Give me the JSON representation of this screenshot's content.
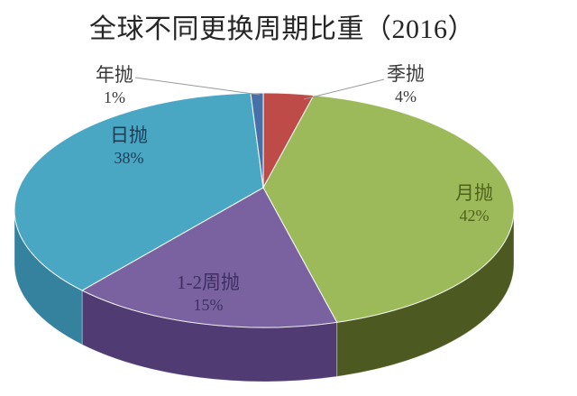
{
  "title": "全球不同更换周期比重（2016）",
  "background_color": "#ffffff",
  "chart_data": {
    "type": "pie",
    "style": "3d",
    "title": "全球不同更换周期比重（2016）",
    "unit": "percent",
    "start_angle": "12-oclock",
    "direction": "clockwise",
    "legend": "none",
    "slices": [
      {
        "label": "季抛",
        "value": 4,
        "pct_label": "4%",
        "color": "#BF4B48",
        "side_color": "#83302E",
        "label_color": "#383838",
        "label_placement": "outside-top-right"
      },
      {
        "label": "月抛",
        "value": 42,
        "pct_label": "42%",
        "color": "#9CBA59",
        "side_color": "#4C5A21",
        "label_color": "#50611E",
        "label_placement": "inside"
      },
      {
        "label": "1-2周抛",
        "value": 15,
        "pct_label": "15%",
        "color": "#7A61A0",
        "side_color": "#503B72",
        "label_color": "#3E2F62",
        "label_placement": "inside"
      },
      {
        "label": "日抛",
        "value": 38,
        "pct_label": "38%",
        "color": "#49A7C3",
        "side_color": "#35829E",
        "label_color": "#1A3C55",
        "label_placement": "inside"
      },
      {
        "label": "年抛",
        "value": 1,
        "pct_label": "1%",
        "color": "#4571A8",
        "side_color": "#2E4D78",
        "label_color": "#383838",
        "label_placement": "outside-top-left"
      }
    ],
    "leader_line_color": "#999999",
    "slice_border_color": "#ffffff"
  }
}
